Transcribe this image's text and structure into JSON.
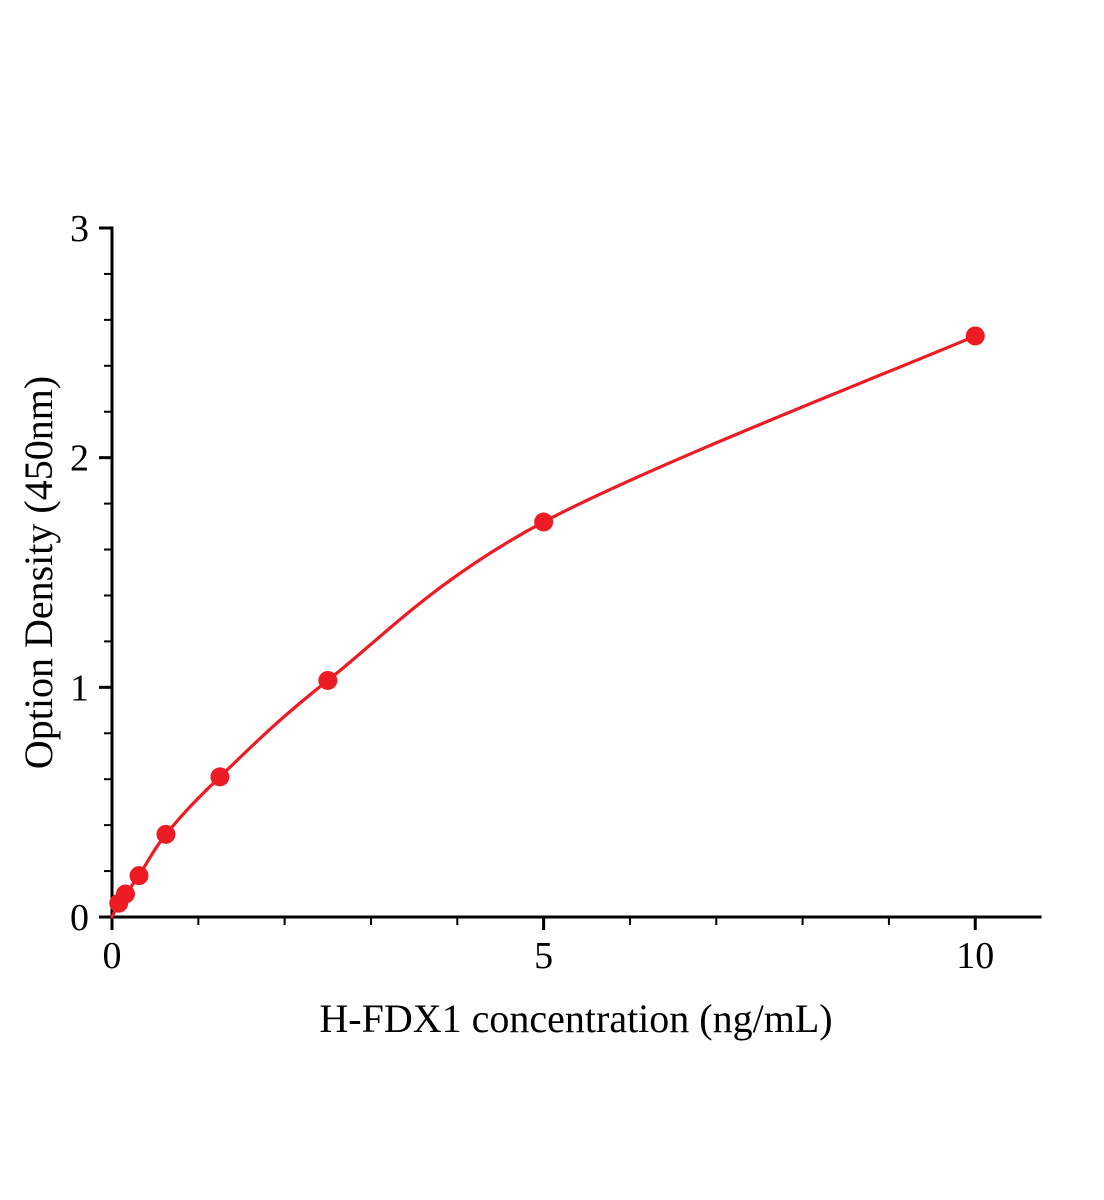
{
  "figure": {
    "background": "#ffffff"
  },
  "chart_data": {
    "type": "scatter",
    "title": "",
    "xlabel": "H-FDX1 concentration (ng/mL)",
    "ylabel": "Option Density (450nm)",
    "x": [
      0.078,
      0.156,
      0.313,
      0.625,
      1.25,
      2.5,
      5,
      10
    ],
    "y": [
      0.06,
      0.1,
      0.18,
      0.36,
      0.61,
      1.03,
      1.72,
      2.53
    ],
    "curve_start": [
      0,
      0
    ],
    "xlim": [
      0,
      10.75
    ],
    "ylim": [
      0,
      3
    ],
    "xticks": [
      0,
      5,
      10
    ],
    "yticks": [
      0,
      1,
      2,
      3
    ],
    "xtick_labels": [
      "0",
      "5",
      "10"
    ],
    "ytick_labels": [
      "0",
      "1",
      "2",
      "3"
    ],
    "x_minor_step": 1,
    "y_minor_step": 0.2,
    "grid": false,
    "legend": null,
    "line_color": "#ed1c24",
    "marker_color": "#ed1c24",
    "axis_color": "#000000"
  }
}
